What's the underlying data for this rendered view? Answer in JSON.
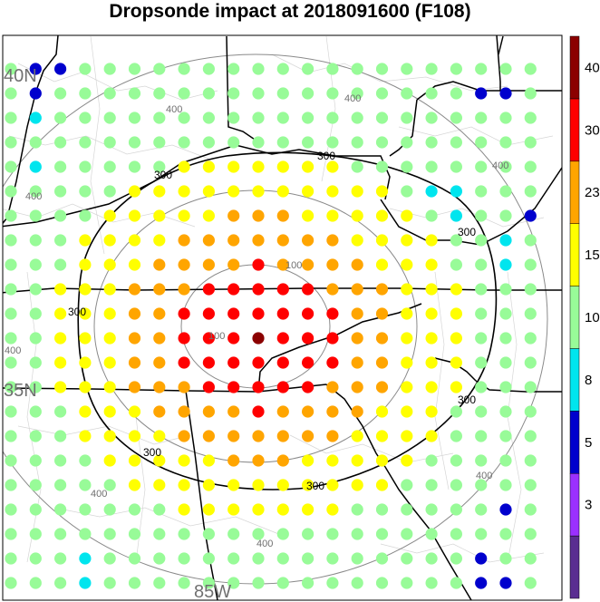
{
  "title": "Dropsonde impact at 2018091600 (F108)",
  "map_labels": {
    "lat": "40N",
    "lat2": "35N",
    "lon": "85W"
  },
  "ring_label": "400",
  "ring_label_inner": "100",
  "contour_label": "300",
  "colorbar": {
    "ticks": [
      "3",
      "5",
      "8",
      "10",
      "15",
      "23",
      "30",
      "40"
    ],
    "colors": [
      "#5a2d91",
      "#9b30ff",
      "#0000cd",
      "#00e5ee",
      "#98fb98",
      "#ffff00",
      "#ffa500",
      "#ff0000",
      "#8b0000"
    ]
  },
  "chart_data": {
    "type": "heatmap",
    "title": "Dropsonde impact at 2018091600 (F108)",
    "center_point": [
      10.0,
      11.0
    ],
    "grid_columns": 22,
    "grid_rows": 22,
    "contours": [
      100,
      300,
      400
    ],
    "bins": [
      {
        "range": "<3",
        "color": "#5a2d91"
      },
      {
        "range": "3-5",
        "color": "#9b30ff"
      },
      {
        "range": "5-8",
        "color": "#0000cd"
      },
      {
        "range": "8-10",
        "color": "#00e5ee"
      },
      {
        "range": "10-15",
        "color": "#98fb98"
      },
      {
        "range": "15-23",
        "color": "#ffff00"
      },
      {
        "range": "23-30",
        "color": "#ffa500"
      },
      {
        "range": "30-40",
        "color": "#ff0000"
      },
      {
        "range": ">40",
        "color": "#8b0000"
      }
    ],
    "color_rule": "impact decreases with distance from center point; dark red at center, red within inner region, orange then yellow then light green outward",
    "special_points": [
      {
        "col": 1,
        "row": 0,
        "bin": "5-8"
      },
      {
        "col": 2,
        "row": 0,
        "bin": "5-8"
      },
      {
        "col": 1,
        "row": 1,
        "bin": "5-8"
      },
      {
        "col": 1,
        "row": 2,
        "bin": "8-10"
      },
      {
        "col": 1,
        "row": 4,
        "bin": "8-10"
      },
      {
        "col": 19,
        "row": 1,
        "bin": "5-8"
      },
      {
        "col": 20,
        "row": 1,
        "bin": "5-8"
      },
      {
        "col": 17,
        "row": 5,
        "bin": "8-10"
      },
      {
        "col": 18,
        "row": 5,
        "bin": "8-10"
      },
      {
        "col": 18,
        "row": 6,
        "bin": "8-10"
      },
      {
        "col": 21,
        "row": 6,
        "bin": "5-8"
      },
      {
        "col": 20,
        "row": 7,
        "bin": "8-10"
      },
      {
        "col": 20,
        "row": 8,
        "bin": "8-10"
      },
      {
        "col": 20,
        "row": 18,
        "bin": "5-8"
      },
      {
        "col": 3,
        "row": 20,
        "bin": "8-10"
      },
      {
        "col": 3,
        "row": 21,
        "bin": "8-10"
      },
      {
        "col": 19,
        "row": 20,
        "bin": "5-8"
      },
      {
        "col": 19,
        "row": 21,
        "bin": "5-8"
      },
      {
        "col": 20,
        "row": 21,
        "bin": "5-8"
      }
    ]
  }
}
